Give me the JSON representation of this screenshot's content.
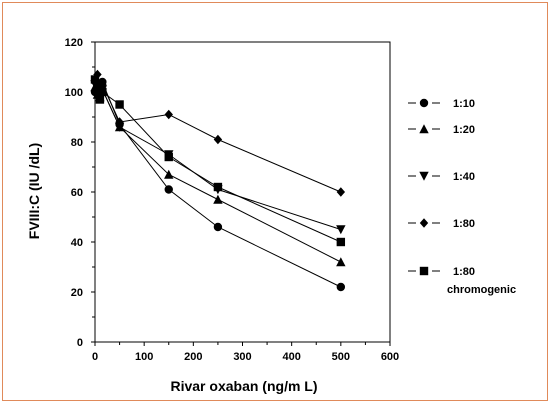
{
  "chart_data": {
    "type": "line",
    "xlabel": "Rivar oxaban (ng/m L)",
    "ylabel": "FVIII:C  (IU /dL)",
    "xlim": [
      0,
      600
    ],
    "ylim": [
      0,
      120
    ],
    "xticks": [
      0,
      100,
      200,
      300,
      400,
      500,
      600
    ],
    "yticks": [
      0,
      20,
      40,
      60,
      80,
      100,
      120
    ],
    "grid": false,
    "legend_position": "right",
    "series": [
      {
        "name": "1:10",
        "marker": "circle",
        "x": [
          0,
          5,
          10,
          15,
          50,
          150,
          250,
          500
        ],
        "y": [
          100,
          101,
          100,
          104,
          87,
          61,
          46,
          22
        ]
      },
      {
        "name": "1:20",
        "marker": "triangle-up",
        "x": [
          0,
          5,
          10,
          15,
          50,
          150,
          250,
          500
        ],
        "y": [
          102,
          99,
          98,
          101,
          86,
          67,
          57,
          32
        ]
      },
      {
        "name": "1:40",
        "marker": "triangle-down",
        "x": [
          0,
          5,
          10,
          15,
          50,
          150,
          250,
          500
        ],
        "y": [
          103,
          100,
          99,
          101,
          86,
          75,
          61,
          45
        ]
      },
      {
        "name": "1:80",
        "marker": "diamond",
        "x": [
          0,
          5,
          10,
          15,
          50,
          150,
          250,
          500
        ],
        "y": [
          104,
          107,
          98,
          103,
          88,
          91,
          81,
          60
        ]
      },
      {
        "name": "1:80",
        "label_line2": "chromogenic",
        "marker": "square",
        "x": [
          0,
          5,
          10,
          15,
          50,
          150,
          250,
          500
        ],
        "y": [
          105,
          102,
          97,
          100,
          95,
          74,
          62,
          40
        ]
      }
    ]
  }
}
